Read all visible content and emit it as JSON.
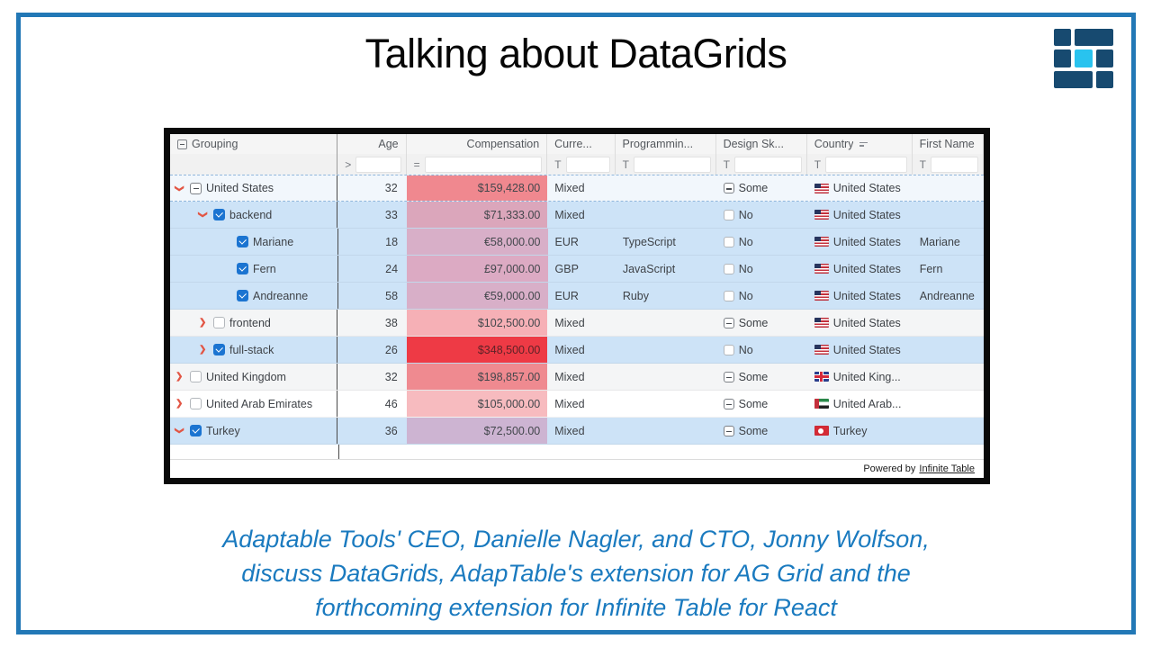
{
  "title": "Talking about DataGrids",
  "colors": {
    "slide_border": "#2278b6",
    "caption_text": "#1a7abf",
    "logo_navy": "#174a70",
    "logo_cyan": "#29c3ef",
    "selected_row": "#cde3f7",
    "chevron": "#e25544",
    "checkbox_checked": "#1b74d1"
  },
  "table": {
    "columns": [
      {
        "label": "Grouping",
        "filter_op": "",
        "header_icon": "collapse-box"
      },
      {
        "label": "Age",
        "filter_op": ">"
      },
      {
        "label": "Compensation",
        "filter_op": "="
      },
      {
        "label": "Curre...",
        "filter_op": "T"
      },
      {
        "label": "Programmin...",
        "filter_op": "T"
      },
      {
        "label": "Design Sk...",
        "filter_op": "T"
      },
      {
        "label": "Country",
        "filter_op": "T",
        "sort_icon": true
      },
      {
        "label": "First Name",
        "filter_op": "T"
      }
    ],
    "rows": [
      {
        "label": "United States",
        "level": 0,
        "chevron": "down",
        "box": "partial",
        "age": "32",
        "comp": "$159,428.00",
        "comp_bg": "#f0888f",
        "comp_fg": "#43474c",
        "currency": "Mixed",
        "programming": "",
        "design_box": "partial",
        "design": "Some",
        "flag": "us",
        "country": "United States",
        "first_name": "",
        "bg": "#f2f7fc",
        "focused": true
      },
      {
        "label": "backend",
        "level": 1,
        "chevron": "down",
        "box": "checked",
        "age": "33",
        "comp": "$71,333.00",
        "comp_bg": "#dba6bb",
        "comp_fg": "#43474c",
        "currency": "Mixed",
        "programming": "",
        "design_box": "unchecked",
        "design": "No",
        "flag": "us",
        "country": "United States",
        "first_name": "",
        "bg": "#cde3f7",
        "focused": false
      },
      {
        "label": "Mariane",
        "level": 2,
        "chevron": null,
        "box": "checked",
        "age": "18",
        "comp": "€58,000.00",
        "comp_bg": "#d8afc8",
        "comp_fg": "#43474c",
        "currency": "EUR",
        "programming": "TypeScript",
        "design_box": "unchecked",
        "design": "No",
        "flag": "us",
        "country": "United States",
        "first_name": "Mariane",
        "bg": "#cde3f7",
        "focused": false
      },
      {
        "label": "Fern",
        "level": 2,
        "chevron": null,
        "box": "checked",
        "age": "24",
        "comp": "£97,000.00",
        "comp_bg": "#dcaac3",
        "comp_fg": "#43474c",
        "currency": "GBP",
        "programming": "JavaScript",
        "design_box": "unchecked",
        "design": "No",
        "flag": "us",
        "country": "United States",
        "first_name": "Fern",
        "bg": "#cde3f7",
        "focused": false
      },
      {
        "label": "Andreanne",
        "level": 2,
        "chevron": null,
        "box": "checked",
        "age": "58",
        "comp": "€59,000.00",
        "comp_bg": "#d8afc8",
        "comp_fg": "#43474c",
        "currency": "EUR",
        "programming": "Ruby",
        "design_box": "unchecked",
        "design": "No",
        "flag": "us",
        "country": "United States",
        "first_name": "Andreanne",
        "bg": "#cde3f7",
        "focused": false
      },
      {
        "label": "frontend",
        "level": 1,
        "chevron": "right",
        "box": "unchecked",
        "age": "38",
        "comp": "$102,500.00",
        "comp_bg": "#f6b0b6",
        "comp_fg": "#43474c",
        "currency": "Mixed",
        "programming": "",
        "design_box": "partial",
        "design": "Some",
        "flag": "us",
        "country": "United States",
        "first_name": "",
        "bg": "#f4f5f6",
        "focused": false
      },
      {
        "label": "full-stack",
        "level": 1,
        "chevron": "right",
        "box": "checked",
        "age": "26",
        "comp": "$348,500.00",
        "comp_bg": "#ee3a45",
        "comp_fg": "#5e2227",
        "currency": "Mixed",
        "programming": "",
        "design_box": "unchecked",
        "design": "No",
        "flag": "us",
        "country": "United States",
        "first_name": "",
        "bg": "#cde3f7",
        "focused": false
      },
      {
        "label": "United Kingdom",
        "level": 0,
        "chevron": "right",
        "box": "unchecked",
        "age": "32",
        "comp": "$198,857.00",
        "comp_bg": "#ef8a90",
        "comp_fg": "#43474c",
        "currency": "Mixed",
        "programming": "",
        "design_box": "partial",
        "design": "Some",
        "flag": "uk",
        "country": "United King...",
        "first_name": "",
        "bg": "#f4f5f6",
        "focused": false
      },
      {
        "label": "United Arab Emirates",
        "level": 0,
        "chevron": "right",
        "box": "unchecked",
        "age": "46",
        "comp": "$105,000.00",
        "comp_bg": "#f7bbbf",
        "comp_fg": "#43474c",
        "currency": "Mixed",
        "programming": "",
        "design_box": "partial",
        "design": "Some",
        "flag": "uae",
        "country": "United Arab...",
        "first_name": "",
        "bg": "#ffffff",
        "focused": false
      },
      {
        "label": "Turkey",
        "level": 0,
        "chevron": "down",
        "box": "checked",
        "age": "36",
        "comp": "$72,500.00",
        "comp_bg": "#cdb4d2",
        "comp_fg": "#43474c",
        "currency": "Mixed",
        "programming": "",
        "design_box": "partial",
        "design": "Some",
        "flag": "tr",
        "country": "Turkey",
        "first_name": "",
        "bg": "#cde3f7",
        "focused": false
      }
    ],
    "footer": {
      "prefix": "Powered by",
      "link_text": "Infinite Table"
    }
  },
  "caption": {
    "lines": [
      "Adaptable Tools' CEO, Danielle Nagler, and CTO, Jonny Wolfson,",
      "discuss DataGrids, AdapTable's extension for AG Grid and the",
      "forthcoming extension for Infinite Table for React"
    ]
  }
}
